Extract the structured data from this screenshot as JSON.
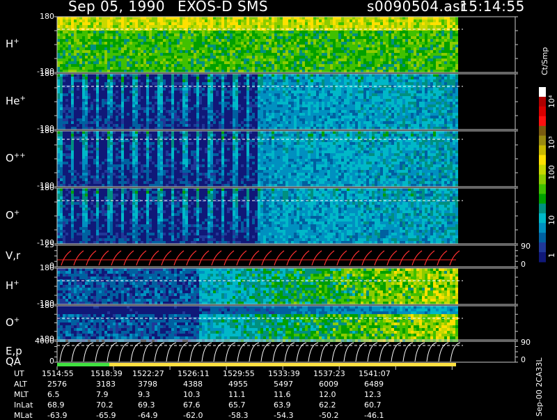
{
  "header": {
    "date": "Sep 05, 1990",
    "instrument": "EXOS-D SMS",
    "file": "s0090504.asr",
    "time": "15:14:55"
  },
  "panels": [
    {
      "label": "H",
      "sup": "+",
      "top": "180",
      "bottom": "-180"
    },
    {
      "label": "He",
      "sup": "+",
      "top": "180",
      "bottom": "-180"
    },
    {
      "label": "O",
      "sup": "++",
      "top": "180",
      "bottom": "-180"
    },
    {
      "label": "O",
      "sup": "+",
      "top": "180",
      "bottom": "-180"
    },
    {
      "label": "V,r",
      "sup": "",
      "top": "25",
      "bottom": "0",
      "right_top": "90",
      "right_bottom": "0"
    },
    {
      "label": "H",
      "sup": "+",
      "top": "180",
      "bottom": "-180"
    },
    {
      "label": "O",
      "sup": "+",
      "top": "180",
      "bottom": "-180"
    },
    {
      "label": "E,p",
      "sup": "",
      "top": "4000",
      "bottom": "0",
      "right_top": "90",
      "right_bottom": "0"
    }
  ],
  "qa_label": "QA",
  "colorbar": {
    "unit": "Ct/Smp",
    "ticks": [
      "10⁴",
      "10³",
      "100",
      "10",
      "1"
    ],
    "colors": [
      "#ffffff",
      "#b00000",
      "#d80000",
      "#ff1010",
      "#7a5a10",
      "#9a8a10",
      "#c8b800",
      "#ffe000",
      "#c8d800",
      "#8ccc00",
      "#40c000",
      "#00a000",
      "#009080",
      "#00b8c8",
      "#0090c0",
      "#0060a0",
      "#203898",
      "#101878"
    ]
  },
  "side_note": "Sep-00 2CA33L",
  "footer": {
    "row_labels": [
      "UT",
      "ALT",
      "MLT",
      "InLat",
      "MLat"
    ],
    "columns": [
      [
        "1514:55",
        "2576",
        "6.5",
        "68.9",
        "-63.9"
      ],
      [
        "1518:39",
        "3183",
        "7.9",
        "70.2",
        "-65.9"
      ],
      [
        "1522:27",
        "3798",
        "9.3",
        "69.3",
        "-64.9"
      ],
      [
        "1526:11",
        "4388",
        "10.3",
        "67.6",
        "-62.0"
      ],
      [
        "1529:55",
        "4955",
        "11.1",
        "65.7",
        "-58.3"
      ],
      [
        "1533:39",
        "5497",
        "11.6",
        "63.9",
        "-54.3"
      ],
      [
        "1537:23",
        "6009",
        "12.0",
        "62.2",
        "-50.2"
      ],
      [
        "1541:07",
        "6489",
        "12.3",
        "60.7",
        "-46.1"
      ]
    ]
  },
  "chart_data": {
    "type": "heatmap",
    "x_ticks_ut": [
      "1514:55",
      "1518:39",
      "1522:27",
      "1526:11",
      "1529:55",
      "1533:39",
      "1537:23",
      "1541:07"
    ],
    "panels": [
      "H+",
      "He+",
      "O++",
      "O+",
      "V,r",
      "H+",
      "O+",
      "E,p"
    ],
    "angle_range": [
      -180,
      180
    ],
    "vr_range": [
      0,
      25
    ],
    "ep_range": [
      0,
      4000
    ],
    "right_axis_range": [
      0,
      90
    ],
    "color_scale": "log",
    "color_unit": "Ct/Smp",
    "color_range": [
      1,
      10000
    ]
  }
}
